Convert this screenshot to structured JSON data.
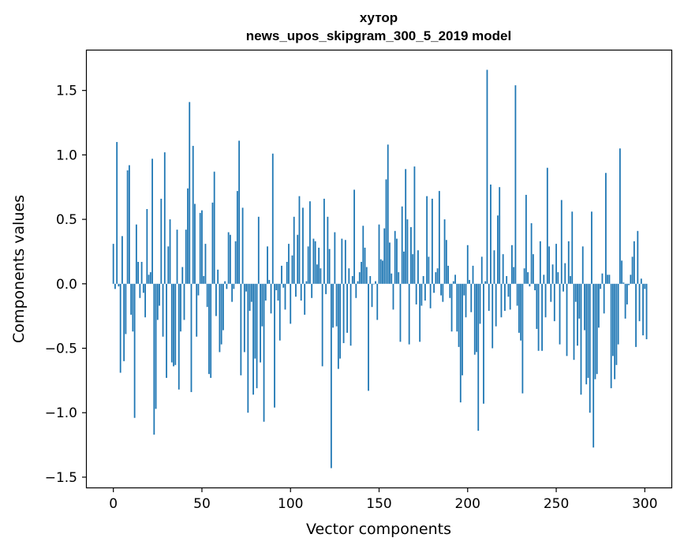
{
  "chart_data": {
    "type": "bar",
    "title_line1": "хутор",
    "title_line2": "news_upos_skipgram_300_5_2019 model",
    "xlabel": "Vector components",
    "ylabel": "Components values",
    "xlim": [
      -15,
      315
    ],
    "ylim": [
      -1.58,
      1.81
    ],
    "x_ticks": [
      0,
      50,
      100,
      150,
      200,
      250,
      300
    ],
    "x_tick_labels": [
      "0",
      "50",
      "100",
      "150",
      "200",
      "250",
      "300"
    ],
    "y_ticks": [
      -1.5,
      -1.0,
      -0.5,
      0.0,
      0.5,
      1.0,
      1.5
    ],
    "y_tick_labels": [
      "−1.5",
      "−1.0",
      "−0.5",
      "0.0",
      "0.5",
      "1.0",
      "1.5"
    ],
    "bar_color": "#1f77b4",
    "grid": false,
    "series": [
      {
        "name": "хутор",
        "values": [
          0.31,
          -0.04,
          1.1,
          -0.02,
          -0.69,
          0.37,
          -0.6,
          -0.39,
          0.88,
          0.92,
          -0.24,
          -0.37,
          -1.04,
          0.46,
          0.17,
          -0.11,
          0.17,
          -0.07,
          -0.26,
          0.58,
          0.07,
          0.09,
          0.97,
          -1.17,
          -0.97,
          -0.28,
          -0.17,
          0.66,
          -0.41,
          1.02,
          -0.73,
          0.29,
          0.5,
          -0.61,
          -0.64,
          -0.63,
          0.42,
          -0.82,
          -0.37,
          0.13,
          -0.28,
          0.42,
          0.74,
          1.41,
          -0.84,
          1.07,
          0.62,
          -0.41,
          -0.09,
          0.55,
          0.57,
          0.06,
          0.31,
          -0.18,
          -0.7,
          -0.73,
          0.63,
          0.87,
          -0.25,
          0.11,
          -0.53,
          -0.47,
          -0.36,
          0.02,
          -0.04,
          0.4,
          0.38,
          -0.14,
          -0.04,
          0.33,
          0.72,
          1.11,
          -0.71,
          0.59,
          -0.53,
          -0.06,
          -1.0,
          -0.21,
          -0.14,
          -0.86,
          -0.58,
          -0.81,
          0.52,
          -0.61,
          -0.33,
          -1.07,
          -0.13,
          0.29,
          0.03,
          -0.23,
          1.01,
          -0.96,
          -0.05,
          -0.13,
          -0.44,
          0.14,
          -0.03,
          -0.2,
          0.17,
          0.31,
          -0.31,
          0.22,
          0.52,
          -0.1,
          0.38,
          0.68,
          -0.13,
          0.59,
          -0.24,
          0.02,
          0.29,
          0.64,
          -0.11,
          0.35,
          0.33,
          0.15,
          0.28,
          0.12,
          -0.64,
          0.66,
          -0.08,
          0.52,
          0.27,
          -1.43,
          -0.34,
          0.4,
          -0.33,
          -0.66,
          -0.58,
          0.35,
          -0.46,
          0.34,
          -0.38,
          0.12,
          -0.48,
          0.06,
          0.73,
          -0.11,
          0.02,
          0.09,
          0.17,
          0.45,
          0.28,
          0.13,
          -0.83,
          0.06,
          -0.18,
          0.0,
          0.02,
          -0.28,
          0.46,
          0.19,
          0.18,
          0.43,
          0.81,
          1.08,
          0.32,
          0.08,
          -0.2,
          0.41,
          0.35,
          0.09,
          -0.45,
          0.6,
          0.25,
          0.89,
          0.5,
          -0.47,
          0.44,
          0.23,
          0.91,
          -0.16,
          0.26,
          -0.45,
          -0.17,
          0.06,
          -0.13,
          0.68,
          0.21,
          -0.19,
          0.66,
          -0.07,
          0.09,
          0.12,
          0.72,
          -0.09,
          -0.14,
          0.5,
          0.34,
          0.14,
          -0.11,
          -0.37,
          0.02,
          0.07,
          -0.37,
          -0.49,
          -0.92,
          -0.71,
          -0.09,
          -0.26,
          0.3,
          0.03,
          -0.22,
          0.14,
          -0.55,
          -0.53,
          -1.14,
          -0.31,
          0.21,
          -0.93,
          0.02,
          1.66,
          -0.21,
          0.77,
          -0.5,
          0.26,
          -0.33,
          0.53,
          0.75,
          -0.26,
          0.23,
          -0.21,
          0.06,
          -0.1,
          -0.2,
          0.3,
          0.13,
          1.54,
          -0.17,
          -0.38,
          -0.44,
          -0.85,
          0.12,
          0.69,
          0.09,
          -0.02,
          0.47,
          0.23,
          -0.05,
          -0.35,
          -0.52,
          0.33,
          -0.52,
          0.07,
          -0.26,
          0.9,
          0.29,
          -0.14,
          0.15,
          -0.29,
          0.31,
          0.09,
          -0.47,
          0.65,
          -0.06,
          0.16,
          -0.56,
          0.33,
          0.06,
          0.56,
          -0.59,
          -0.14,
          -0.48,
          -0.27,
          -0.86,
          0.29,
          -0.36,
          -0.78,
          -0.73,
          -1.0,
          0.56,
          -1.27,
          -0.74,
          -0.7,
          -0.34,
          -0.04,
          0.08,
          -0.23,
          0.86,
          0.07,
          0.07,
          -0.81,
          -0.56,
          -0.74,
          -0.63,
          -0.47,
          1.05,
          0.18,
          0.01,
          -0.27,
          -0.16,
          -0.01,
          0.07,
          0.21,
          0.33,
          -0.49,
          0.41,
          -0.29,
          0.04,
          -0.4,
          -0.04,
          -0.43
        ]
      }
    ]
  }
}
